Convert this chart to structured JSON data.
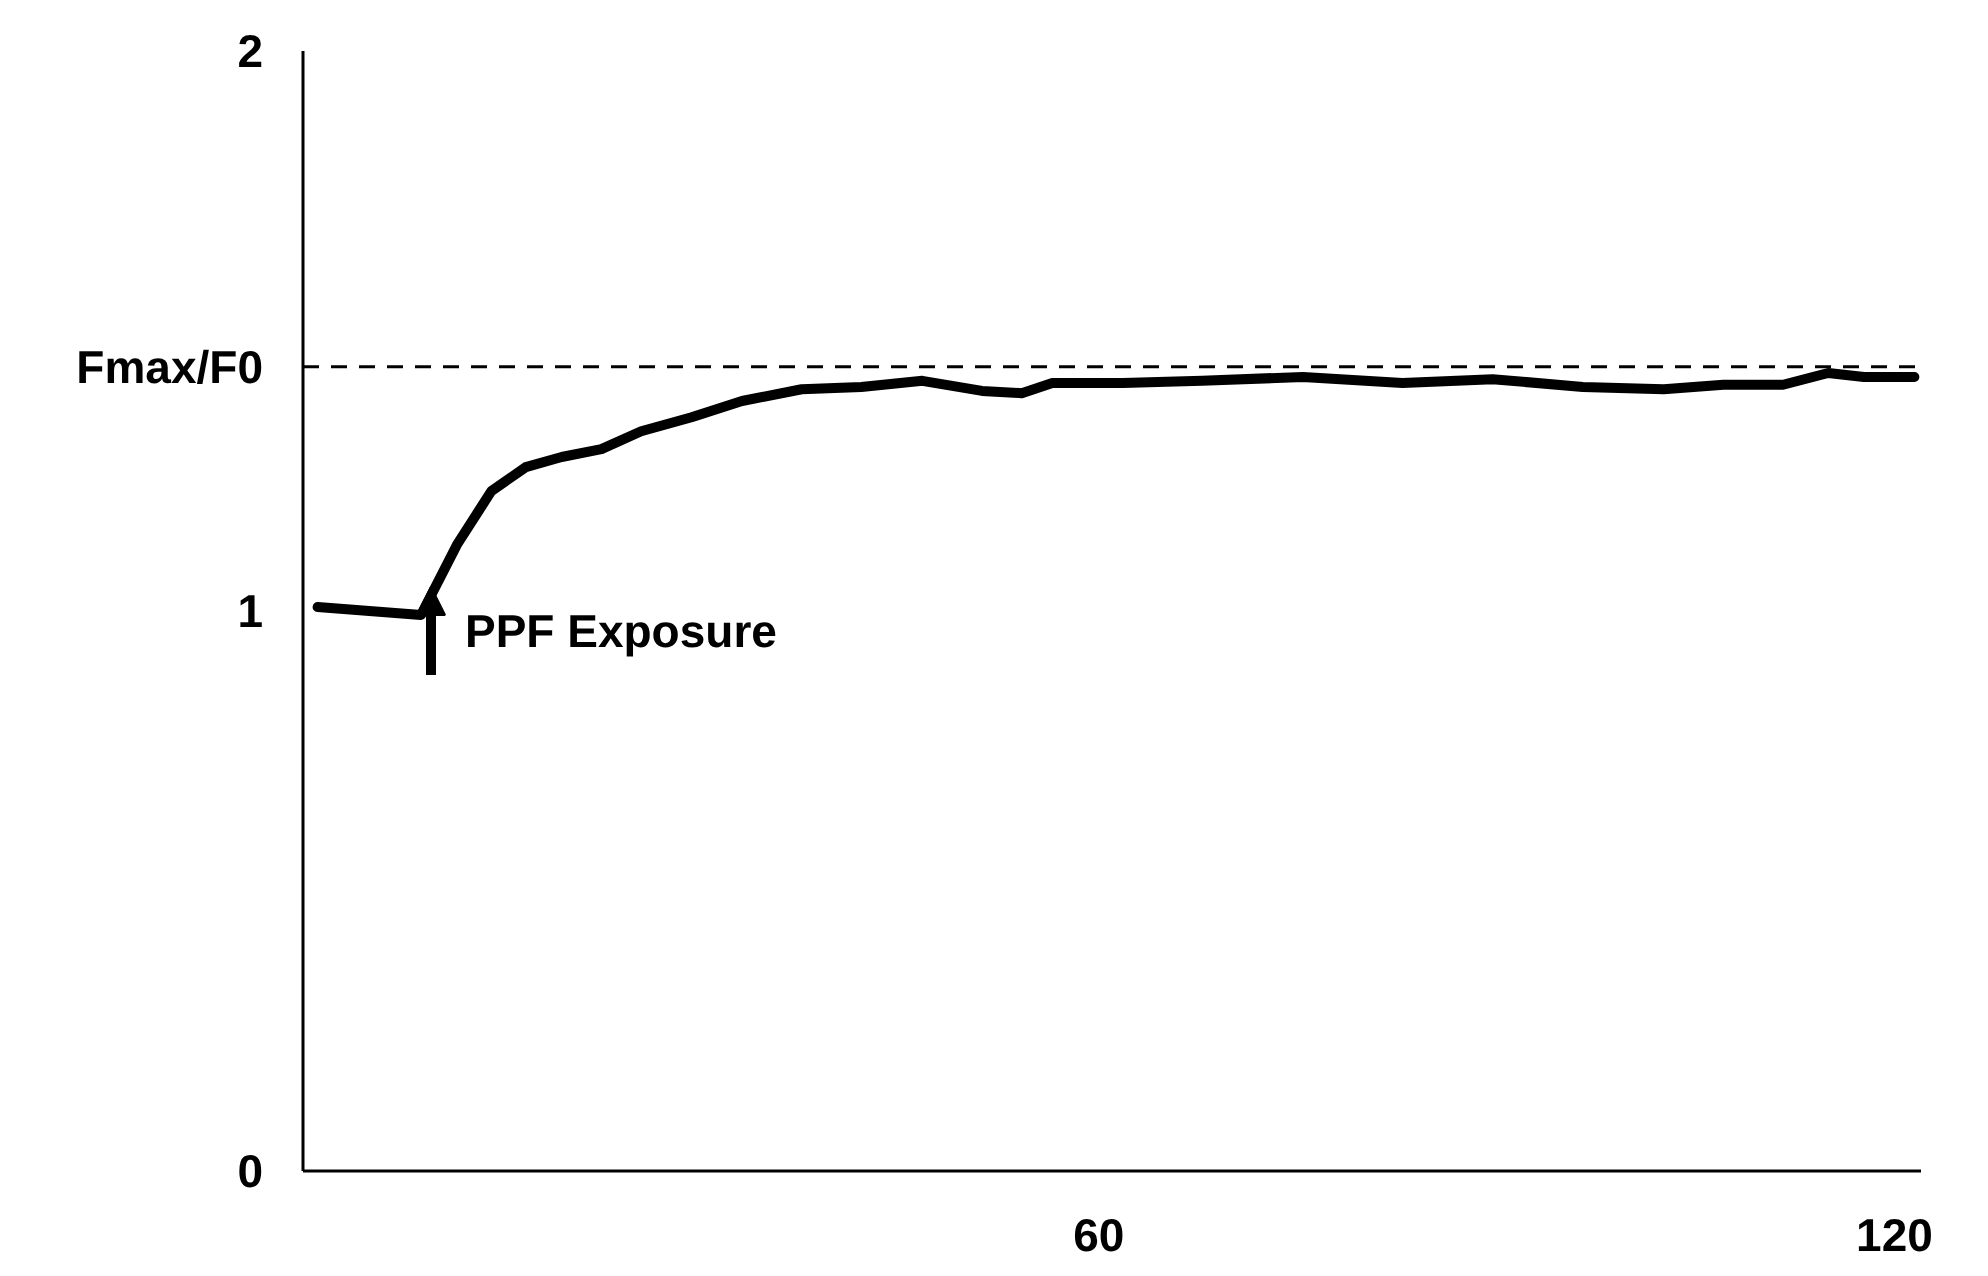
{
  "chart_data": {
    "type": "line",
    "x": [
      1.1,
      8.9,
      11.6,
      14.2,
      16.8,
      19.5,
      22.5,
      25.5,
      29.3,
      33.1,
      37.6,
      42.1,
      46.7,
      51.2,
      54.2,
      56.5,
      61.8,
      67.8,
      75.4,
      82.9,
      89.7,
      96.5,
      102.6,
      107.1,
      111.6,
      115,
      117.7,
      121.5
    ],
    "series": [
      {
        "color": "#000000",
        "values": [
          1.007,
          0.993,
          1.118,
          1.214,
          1.257,
          1.275,
          1.289,
          1.321,
          1.346,
          1.375,
          1.396,
          1.4,
          1.411,
          1.393,
          1.389,
          1.407,
          1.407,
          1.411,
          1.418,
          1.407,
          1.414,
          1.4,
          1.396,
          1.404,
          1.404,
          1.425,
          1.418,
          1.418
        ]
      }
    ],
    "xlim": [
      0,
      122
    ],
    "ylim": [
      0,
      2
    ],
    "xticks": [
      60,
      120
    ],
    "yticks": [
      0,
      1,
      {
        "value": 1.436,
        "label": "Fmax/F0"
      },
      2
    ],
    "ref_lines": [
      {
        "axis": "y",
        "value": 1.436,
        "color": "#000000",
        "line_style": "dashed"
      }
    ],
    "annotations": [
      "PPF Exposure"
    ],
    "grid": false,
    "marker": "none",
    "line_style": "solid"
  }
}
